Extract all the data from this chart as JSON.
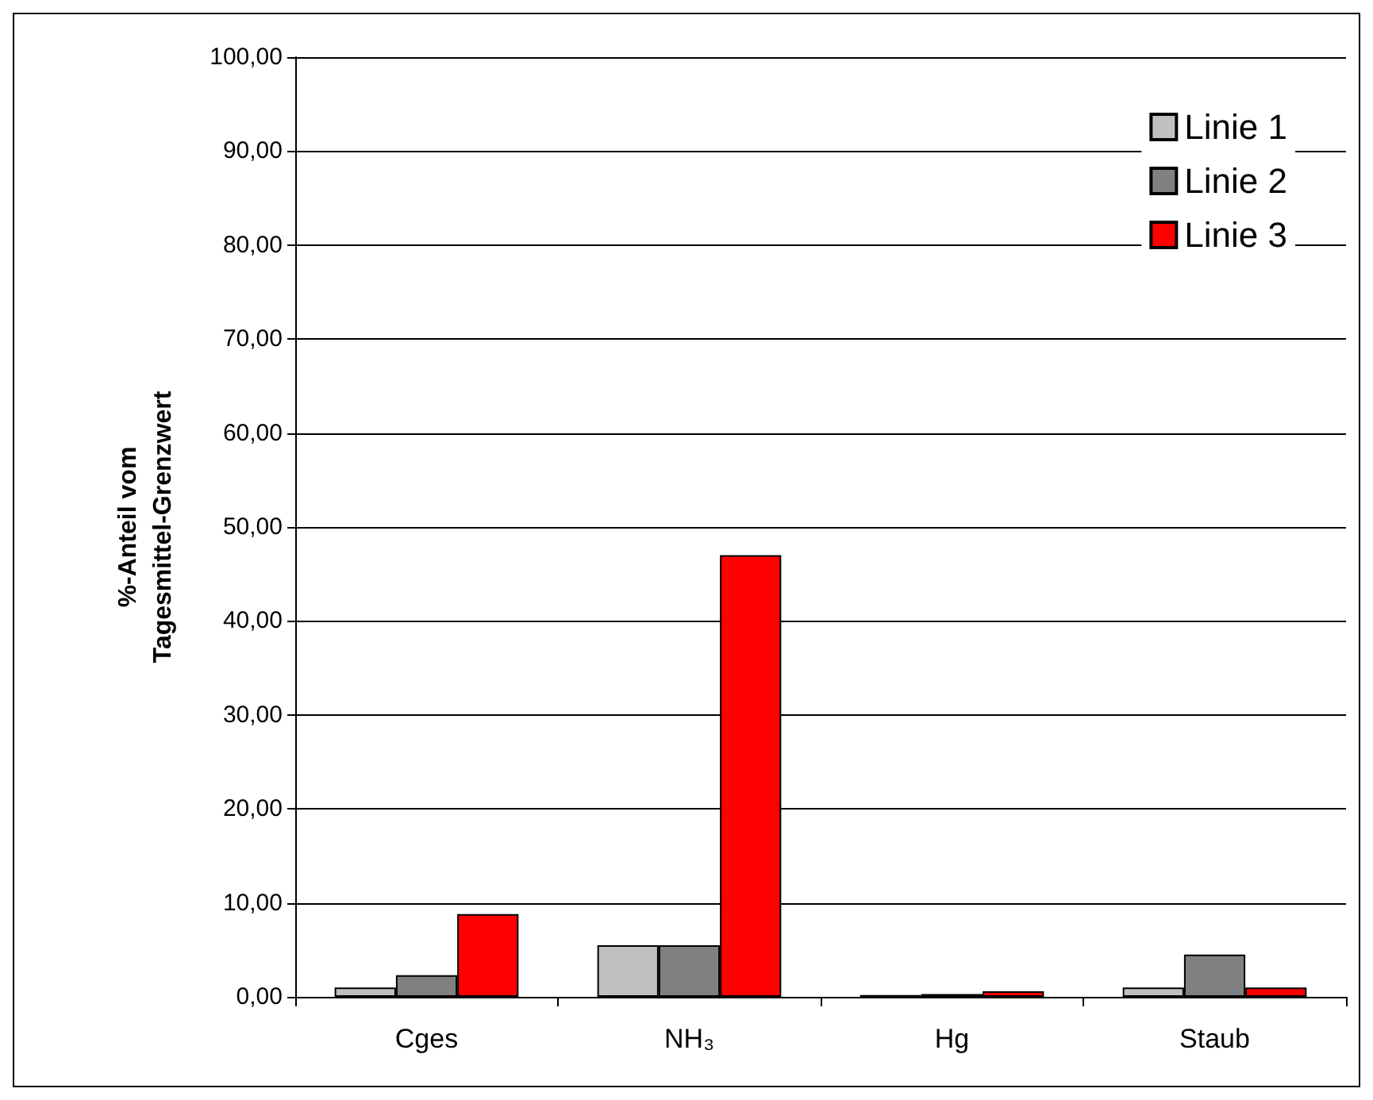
{
  "chart_data": {
    "type": "bar",
    "ylabel": "%-Anteil vom\nTagesmittel-Grenzwert",
    "categories": [
      "Cges",
      "NH₃",
      "Hg",
      "Staub"
    ],
    "series": [
      {
        "name": "Linie 1",
        "color": "#c0c0c0",
        "values": [
          1.0,
          5.5,
          0.2,
          1.0
        ]
      },
      {
        "name": "Linie 2",
        "color": "#808080",
        "values": [
          2.3,
          5.5,
          0.3,
          4.5
        ]
      },
      {
        "name": "Linie 3",
        "color": "#ff0000",
        "values": [
          8.8,
          47.0,
          0.6,
          1.0
        ]
      }
    ],
    "ylim": [
      0,
      100
    ],
    "yticks": [
      {
        "value": 0,
        "label": "0,00"
      },
      {
        "value": 10,
        "label": "10,00"
      },
      {
        "value": 20,
        "label": "20,00"
      },
      {
        "value": 30,
        "label": "30,00"
      },
      {
        "value": 40,
        "label": "40,00"
      },
      {
        "value": 50,
        "label": "50,00"
      },
      {
        "value": 60,
        "label": "60,00"
      },
      {
        "value": 70,
        "label": "70,00"
      },
      {
        "value": 80,
        "label": "80,00"
      },
      {
        "value": 90,
        "label": "90,00"
      },
      {
        "value": 100,
        "label": "100,00"
      }
    ],
    "grid": "y",
    "legend": "top right"
  }
}
